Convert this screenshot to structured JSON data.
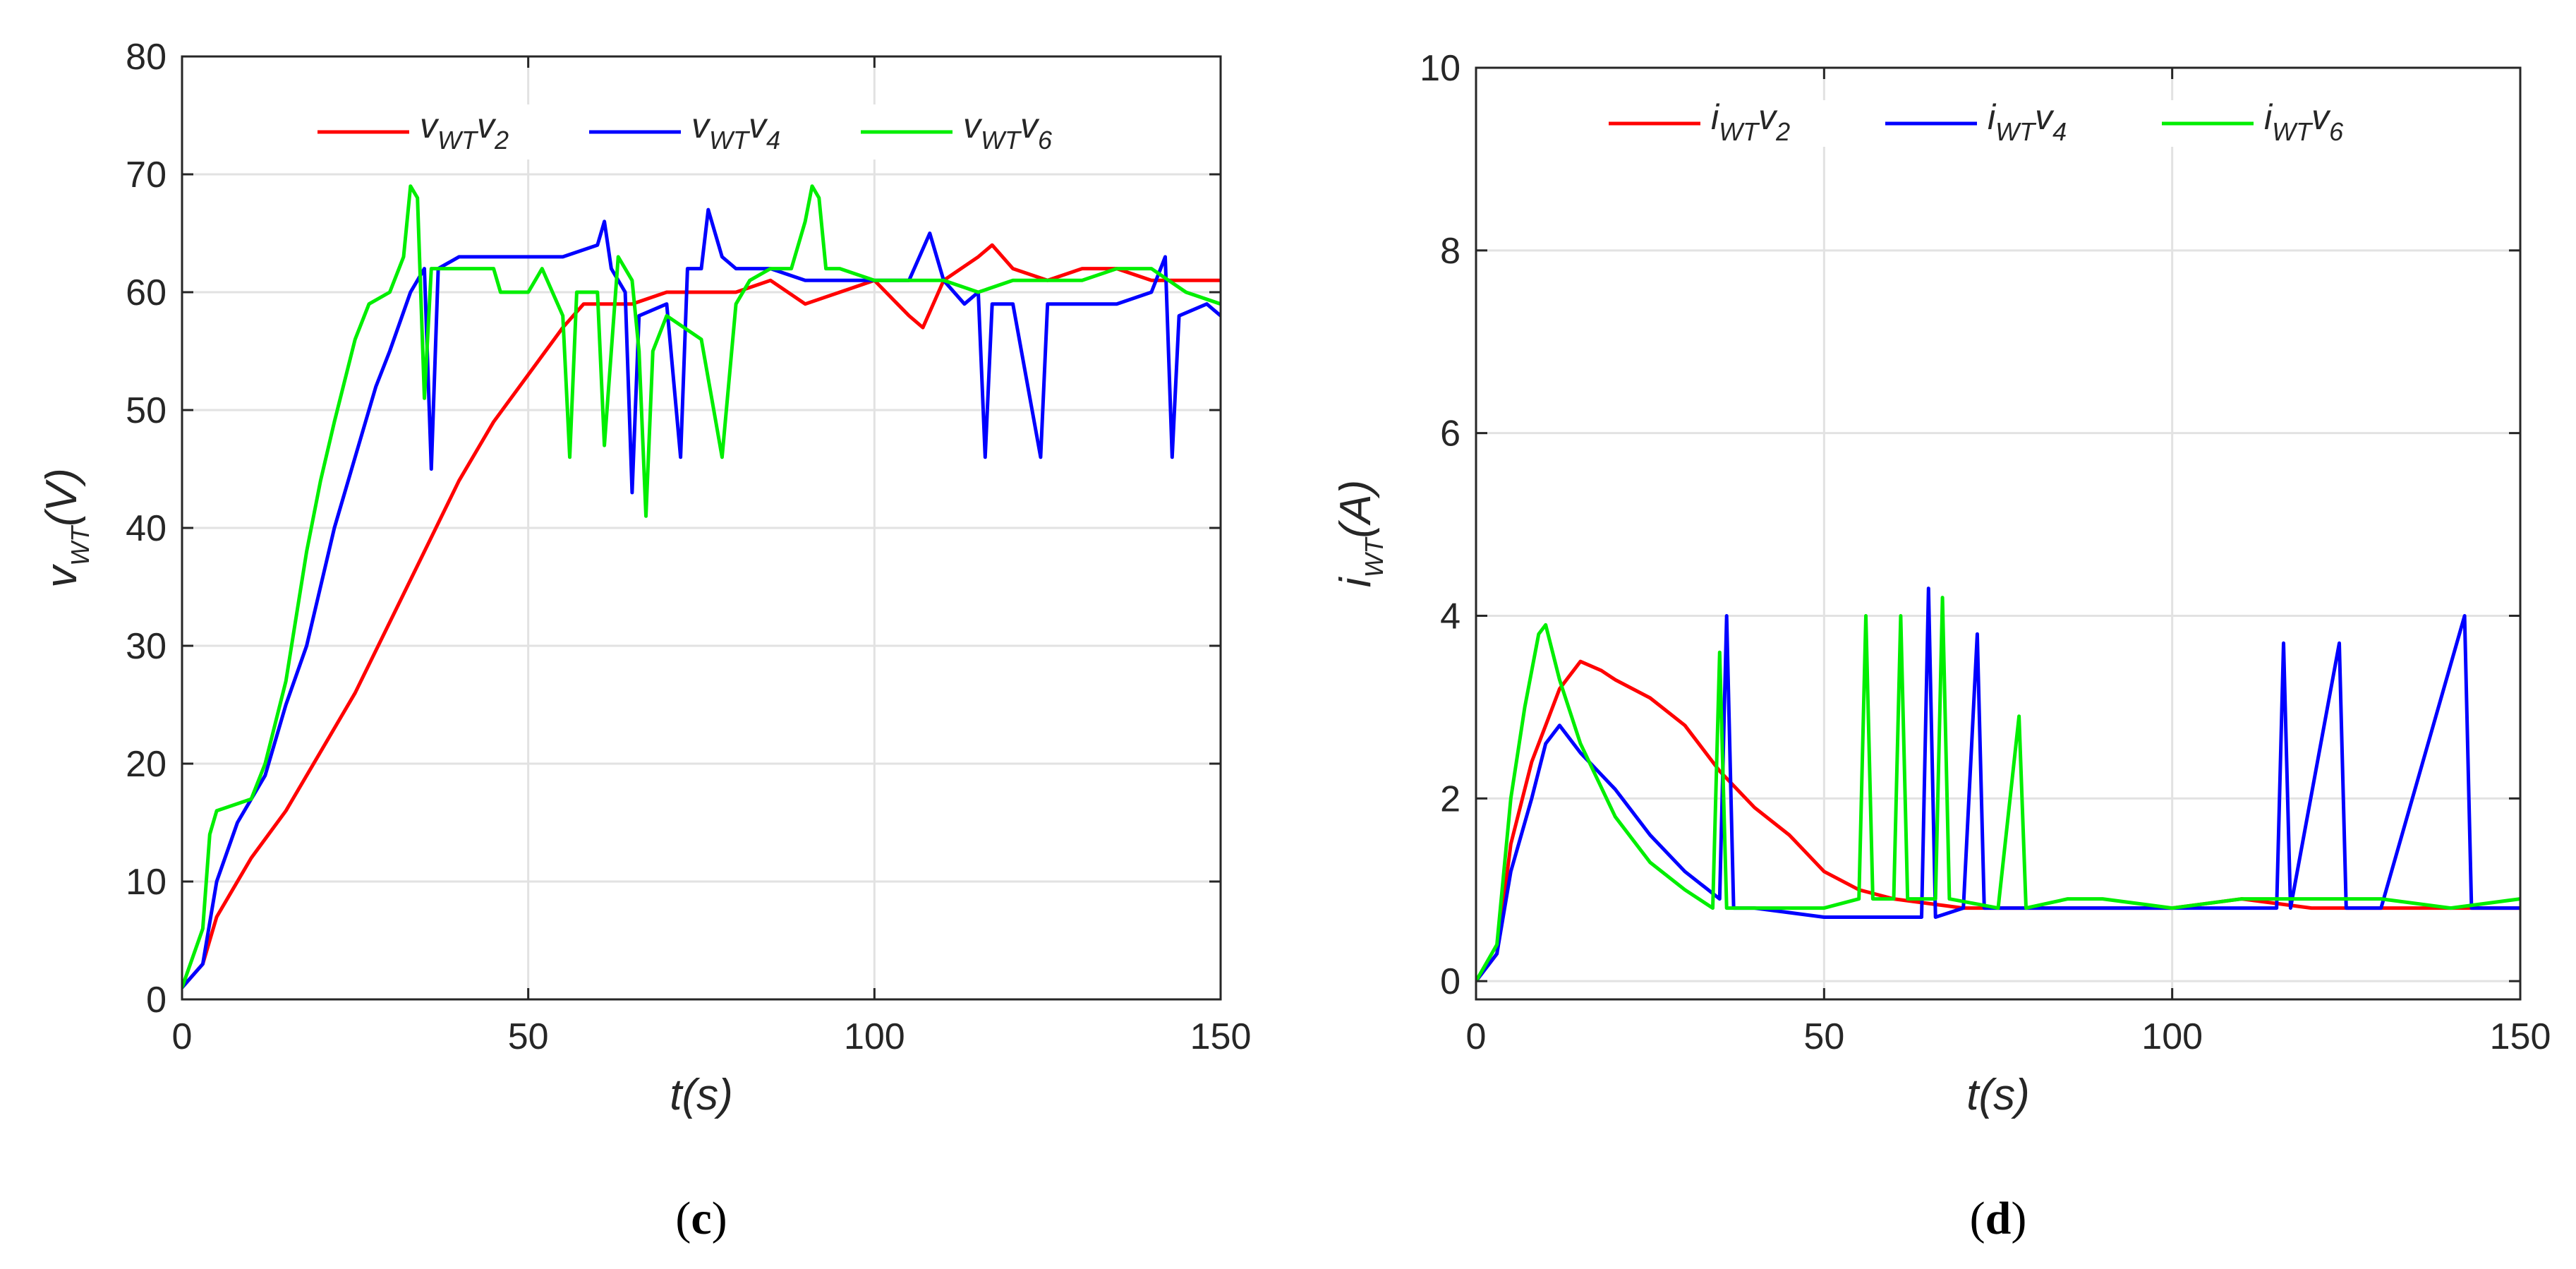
{
  "chart_data": [
    {
      "type": "line",
      "panel_label": "c",
      "title": "",
      "xlabel": "t(s)",
      "ylabel": {
        "base": "v",
        "sub": "WT",
        "unit": "(V)"
      },
      "xlim": [
        0,
        150
      ],
      "ylim": [
        0,
        80
      ],
      "xticks": [
        0,
        50,
        100,
        150
      ],
      "yticks": [
        0,
        10,
        20,
        30,
        40,
        50,
        60,
        70,
        80
      ],
      "grid": true,
      "legend_position": "top",
      "series": [
        {
          "name": "v_WT v_2",
          "legend": {
            "base": "v",
            "sub": "WT",
            "base2": "v",
            "sub2": "2"
          },
          "color": "#ff0000",
          "points": [
            [
              0,
              1
            ],
            [
              3,
              3
            ],
            [
              5,
              7
            ],
            [
              7,
              9
            ],
            [
              10,
              12
            ],
            [
              15,
              16
            ],
            [
              20,
              21
            ],
            [
              25,
              26
            ],
            [
              30,
              32
            ],
            [
              35,
              38
            ],
            [
              40,
              44
            ],
            [
              45,
              49
            ],
            [
              50,
              53
            ],
            [
              55,
              57
            ],
            [
              58,
              59
            ],
            [
              65,
              59
            ],
            [
              70,
              60
            ],
            [
              80,
              60
            ],
            [
              85,
              61
            ],
            [
              90,
              59
            ],
            [
              95,
              60
            ],
            [
              100,
              61
            ],
            [
              105,
              58
            ],
            [
              107,
              57
            ],
            [
              110,
              61
            ],
            [
              115,
              63
            ],
            [
              117,
              64
            ],
            [
              120,
              62
            ],
            [
              125,
              61
            ],
            [
              130,
              62
            ],
            [
              135,
              62
            ],
            [
              140,
              61
            ],
            [
              145,
              61
            ],
            [
              150,
              61
            ]
          ]
        },
        {
          "name": "v_WT v_4",
          "legend": {
            "base": "v",
            "sub": "WT",
            "base2": "v",
            "sub2": "4"
          },
          "color": "#0000ff",
          "points": [
            [
              0,
              1
            ],
            [
              3,
              3
            ],
            [
              5,
              10
            ],
            [
              8,
              15
            ],
            [
              12,
              19
            ],
            [
              15,
              25
            ],
            [
              18,
              30
            ],
            [
              22,
              40
            ],
            [
              25,
              46
            ],
            [
              28,
              52
            ],
            [
              30,
              55
            ],
            [
              33,
              60
            ],
            [
              35,
              62
            ],
            [
              36,
              45
            ],
            [
              37,
              62
            ],
            [
              40,
              63
            ],
            [
              45,
              63
            ],
            [
              55,
              63
            ],
            [
              60,
              64
            ],
            [
              61,
              66
            ],
            [
              62,
              62
            ],
            [
              64,
              60
            ],
            [
              65,
              43
            ],
            [
              66,
              58
            ],
            [
              70,
              59
            ],
            [
              72,
              46
            ],
            [
              73,
              62
            ],
            [
              75,
              62
            ],
            [
              76,
              67
            ],
            [
              78,
              63
            ],
            [
              80,
              62
            ],
            [
              85,
              62
            ],
            [
              90,
              61
            ],
            [
              100,
              61
            ],
            [
              105,
              61
            ],
            [
              108,
              65
            ],
            [
              110,
              61
            ],
            [
              113,
              59
            ],
            [
              115,
              60
            ],
            [
              116,
              46
            ],
            [
              117,
              59
            ],
            [
              120,
              59
            ],
            [
              124,
              46
            ],
            [
              125,
              59
            ],
            [
              130,
              59
            ],
            [
              135,
              59
            ],
            [
              140,
              60
            ],
            [
              142,
              63
            ],
            [
              143,
              46
            ],
            [
              144,
              58
            ],
            [
              148,
              59
            ],
            [
              150,
              58
            ]
          ]
        },
        {
          "name": "v_WT v_6",
          "legend": {
            "base": "v",
            "sub": "WT",
            "base2": "v",
            "sub2": "6"
          },
          "color": "#00ee00",
          "points": [
            [
              0,
              1
            ],
            [
              3,
              6
            ],
            [
              4,
              14
            ],
            [
              5,
              16
            ],
            [
              10,
              17
            ],
            [
              12,
              20
            ],
            [
              15,
              27
            ],
            [
              18,
              38
            ],
            [
              20,
              44
            ],
            [
              22,
              49
            ],
            [
              25,
              56
            ],
            [
              27,
              59
            ],
            [
              30,
              60
            ],
            [
              32,
              63
            ],
            [
              33,
              69
            ],
            [
              34,
              68
            ],
            [
              35,
              51
            ],
            [
              36,
              62
            ],
            [
              40,
              62
            ],
            [
              45,
              62
            ],
            [
              46,
              60
            ],
            [
              50,
              60
            ],
            [
              52,
              62
            ],
            [
              55,
              58
            ],
            [
              56,
              46
            ],
            [
              57,
              60
            ],
            [
              60,
              60
            ],
            [
              61,
              47
            ],
            [
              63,
              63
            ],
            [
              65,
              61
            ],
            [
              66,
              55
            ],
            [
              67,
              41
            ],
            [
              68,
              55
            ],
            [
              70,
              58
            ],
            [
              75,
              56
            ],
            [
              78,
              46
            ],
            [
              80,
              59
            ],
            [
              82,
              61
            ],
            [
              85,
              62
            ],
            [
              88,
              62
            ],
            [
              90,
              66
            ],
            [
              91,
              69
            ],
            [
              92,
              68
            ],
            [
              93,
              62
            ],
            [
              95,
              62
            ],
            [
              100,
              61
            ],
            [
              105,
              61
            ],
            [
              110,
              61
            ],
            [
              115,
              60
            ],
            [
              120,
              61
            ],
            [
              125,
              61
            ],
            [
              130,
              61
            ],
            [
              135,
              62
            ],
            [
              140,
              62
            ],
            [
              145,
              60
            ],
            [
              150,
              59
            ]
          ]
        }
      ]
    },
    {
      "type": "line",
      "panel_label": "d",
      "title": "",
      "xlabel": "t(s)",
      "ylabel": {
        "base": "i",
        "sub": "WT",
        "unit": "(A)"
      },
      "xlim": [
        0,
        150
      ],
      "ylim": [
        -0.2,
        10
      ],
      "xticks": [
        0,
        50,
        100,
        150
      ],
      "yticks": [
        0,
        2,
        4,
        6,
        8,
        10
      ],
      "grid": true,
      "legend_position": "top",
      "series": [
        {
          "name": "i_WT v_2",
          "legend": {
            "base": "i",
            "sub": "WT",
            "base2": "v",
            "sub2": "2"
          },
          "color": "#ff0000",
          "points": [
            [
              0,
              0
            ],
            [
              3,
              0.3
            ],
            [
              5,
              1.5
            ],
            [
              8,
              2.4
            ],
            [
              10,
              2.8
            ],
            [
              12,
              3.2
            ],
            [
              15,
              3.5
            ],
            [
              18,
              3.4
            ],
            [
              20,
              3.3
            ],
            [
              25,
              3.1
            ],
            [
              30,
              2.8
            ],
            [
              35,
              2.3
            ],
            [
              40,
              1.9
            ],
            [
              45,
              1.6
            ],
            [
              50,
              1.2
            ],
            [
              55,
              1.0
            ],
            [
              60,
              0.9
            ],
            [
              70,
              0.8
            ],
            [
              80,
              0.8
            ],
            [
              90,
              0.8
            ],
            [
              100,
              0.8
            ],
            [
              110,
              0.9
            ],
            [
              120,
              0.8
            ],
            [
              130,
              0.8
            ],
            [
              140,
              0.8
            ],
            [
              150,
              0.8
            ]
          ]
        },
        {
          "name": "i_WT v_4",
          "legend": {
            "base": "i",
            "sub": "WT",
            "base2": "v",
            "sub2": "4"
          },
          "color": "#0000ff",
          "points": [
            [
              0,
              0
            ],
            [
              3,
              0.3
            ],
            [
              5,
              1.2
            ],
            [
              8,
              2.0
            ],
            [
              10,
              2.6
            ],
            [
              12,
              2.8
            ],
            [
              15,
              2.5
            ],
            [
              20,
              2.1
            ],
            [
              25,
              1.6
            ],
            [
              30,
              1.2
            ],
            [
              35,
              0.9
            ],
            [
              36,
              4.0
            ],
            [
              37,
              0.8
            ],
            [
              40,
              0.8
            ],
            [
              50,
              0.7
            ],
            [
              60,
              0.7
            ],
            [
              64,
              0.7
            ],
            [
              65,
              4.3
            ],
            [
              66,
              0.7
            ],
            [
              70,
              0.8
            ],
            [
              72,
              3.8
            ],
            [
              73,
              0.8
            ],
            [
              80,
              0.8
            ],
            [
              90,
              0.8
            ],
            [
              100,
              0.8
            ],
            [
              110,
              0.8
            ],
            [
              115,
              0.8
            ],
            [
              116,
              3.7
            ],
            [
              117,
              0.8
            ],
            [
              124,
              3.7
            ],
            [
              125,
              0.8
            ],
            [
              130,
              0.8
            ],
            [
              142,
              4.0
            ],
            [
              143,
              0.8
            ],
            [
              150,
              0.8
            ]
          ]
        },
        {
          "name": "i_WT v_6",
          "legend": {
            "base": "i",
            "sub": "WT",
            "base2": "v",
            "sub2": "6"
          },
          "color": "#00ee00",
          "points": [
            [
              0,
              0
            ],
            [
              3,
              0.4
            ],
            [
              5,
              2.0
            ],
            [
              7,
              3.0
            ],
            [
              9,
              3.8
            ],
            [
              10,
              3.9
            ],
            [
              12,
              3.3
            ],
            [
              15,
              2.6
            ],
            [
              20,
              1.8
            ],
            [
              25,
              1.3
            ],
            [
              30,
              1.0
            ],
            [
              34,
              0.8
            ],
            [
              35,
              3.6
            ],
            [
              36,
              0.8
            ],
            [
              40,
              0.8
            ],
            [
              50,
              0.8
            ],
            [
              55,
              0.9
            ],
            [
              56,
              4.0
            ],
            [
              57,
              0.9
            ],
            [
              60,
              0.9
            ],
            [
              61,
              4.0
            ],
            [
              62,
              0.9
            ],
            [
              66,
              0.9
            ],
            [
              67,
              4.2
            ],
            [
              68,
              0.9
            ],
            [
              75,
              0.8
            ],
            [
              78,
              2.9
            ],
            [
              79,
              0.8
            ],
            [
              85,
              0.9
            ],
            [
              90,
              0.9
            ],
            [
              100,
              0.8
            ],
            [
              110,
              0.9
            ],
            [
              120,
              0.9
            ],
            [
              130,
              0.9
            ],
            [
              140,
              0.8
            ],
            [
              150,
              0.9
            ]
          ]
        }
      ]
    }
  ]
}
